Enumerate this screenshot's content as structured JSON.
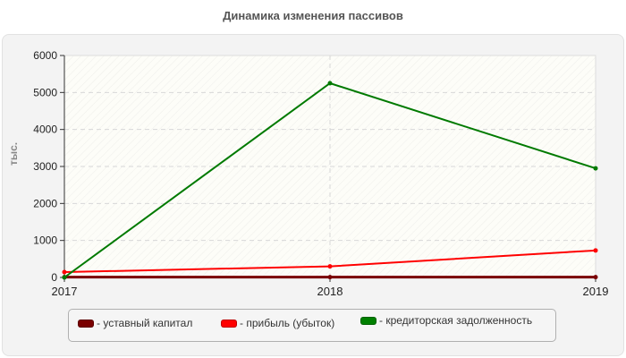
{
  "title": "Динамика изменения пассивов",
  "chart_data": {
    "type": "line",
    "title": "Динамика изменения пассивов",
    "xlabel": "",
    "ylabel": "тыс.",
    "categories": [
      "2017",
      "2018",
      "2019"
    ],
    "ylim": [
      0,
      6000
    ],
    "yticks": [
      0,
      1000,
      2000,
      3000,
      4000,
      5000,
      6000
    ],
    "grid": true,
    "legend_position": "bottom",
    "series": [
      {
        "name": "уставный капитал",
        "color": "#7a0000",
        "values": [
          10,
          10,
          10
        ]
      },
      {
        "name": "прибыль (убыток)",
        "color": "#ff0000",
        "values": [
          145,
          300,
          730
        ]
      },
      {
        "name": "кредиторская задолженность",
        "color": "#007a00",
        "values": [
          0,
          5250,
          2950
        ]
      }
    ]
  },
  "legend": [
    {
      "label": "- уставный капитал",
      "color": "#7a0000"
    },
    {
      "label": "- прибыль (убыток)",
      "color": "#ff0000"
    },
    {
      "label": "- кредиторская задолженность",
      "color": "#008000"
    }
  ]
}
